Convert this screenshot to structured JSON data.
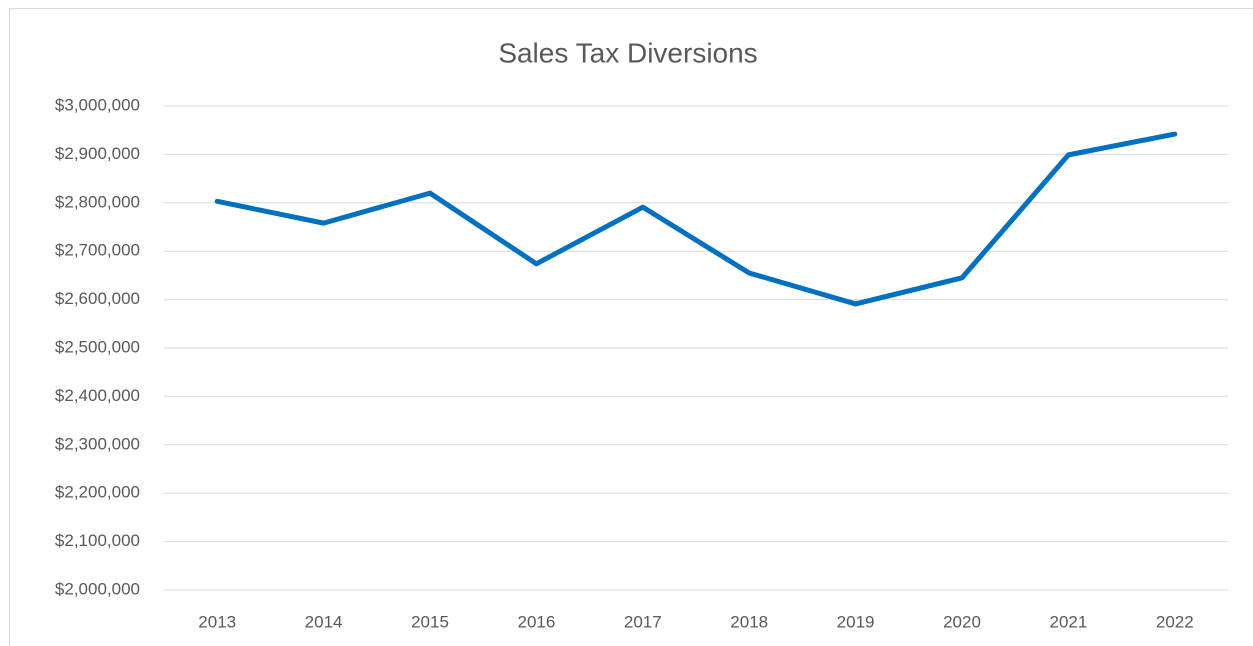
{
  "chart_data": {
    "type": "line",
    "title": "Sales Tax Diversions",
    "categories": [
      "2013",
      "2014",
      "2015",
      "2016",
      "2017",
      "2018",
      "2019",
      "2020",
      "2021",
      "2022"
    ],
    "series": [
      {
        "name": "Sales Tax Diversions",
        "color": "#0070c0",
        "values": [
          2803000,
          2758000,
          2820000,
          2674000,
          2791000,
          2655000,
          2591000,
          2645000,
          2899000,
          2942000
        ]
      }
    ],
    "ylim": [
      2000000,
      3000000
    ],
    "yticks": [
      {
        "value": 2000000,
        "label": "$2,000,000"
      },
      {
        "value": 2100000,
        "label": "$2,100,000"
      },
      {
        "value": 2200000,
        "label": "$2,200,000"
      },
      {
        "value": 2300000,
        "label": "$2,300,000"
      },
      {
        "value": 2400000,
        "label": "$2,400,000"
      },
      {
        "value": 2500000,
        "label": "$2,500,000"
      },
      {
        "value": 2600000,
        "label": "$2,600,000"
      },
      {
        "value": 2700000,
        "label": "$2,700,000"
      },
      {
        "value": 2800000,
        "label": "$2,800,000"
      },
      {
        "value": 2900000,
        "label": "$2,900,000"
      },
      {
        "value": 3000000,
        "label": "$3,000,000"
      }
    ],
    "grid": true
  }
}
